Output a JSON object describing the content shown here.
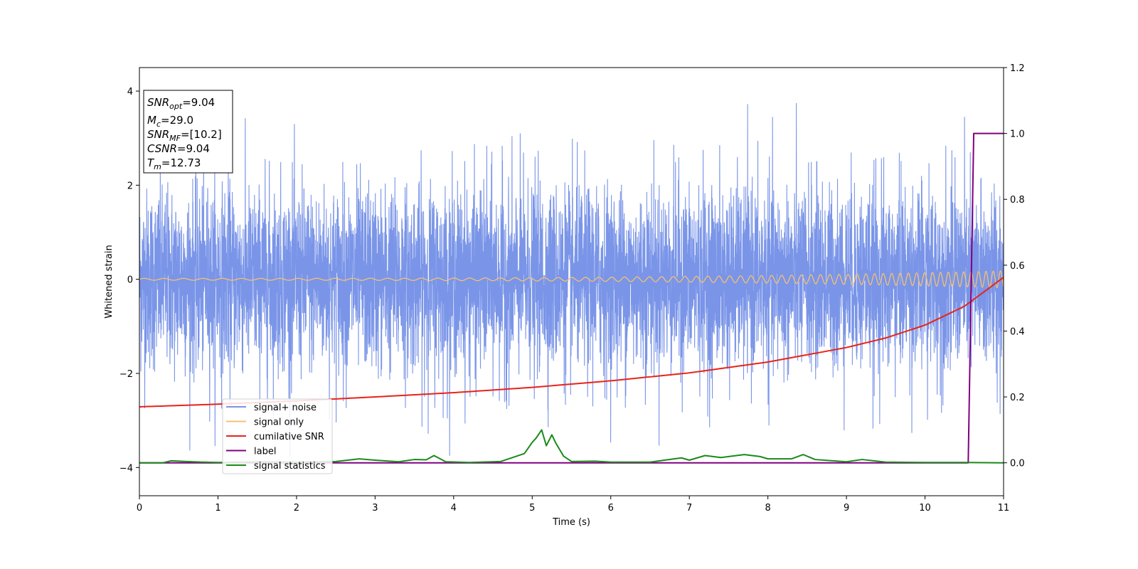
{
  "chart_data": {
    "type": "line",
    "xlabel": "Time (s)",
    "ylabel": "Whitened strain",
    "xlim": [
      0,
      11
    ],
    "ylim": [
      -4.6,
      4.5
    ],
    "y2lim": [
      -0.1,
      1.2
    ],
    "xticks": [
      "0",
      "1",
      "2",
      "3",
      "4",
      "5",
      "6",
      "7",
      "8",
      "9",
      "10",
      "11"
    ],
    "yticks": [
      "4",
      "2",
      "0",
      "−2",
      "−4"
    ],
    "y2ticks": [
      "1.2",
      "1.0",
      "0.8",
      "0.6",
      "0.4",
      "0.2",
      "0.0"
    ],
    "grid": false,
    "legend_position": "lower-left",
    "annotation": {
      "snr_opt": {
        "base": "SNR",
        "sub": "opt",
        "value": "=9.04"
      },
      "mc": {
        "base": "M",
        "sub": "c",
        "value": "=29.0"
      },
      "snr_mf": {
        "base": "SNR",
        "sub": "MF",
        "value": "=[10.2]"
      },
      "csnr": {
        "base": "CSNR",
        "value": "=9.04"
      },
      "tm": {
        "base": "T",
        "sub": "m",
        "value": "=12.73"
      }
    },
    "series": [
      {
        "name": "signal+ noise",
        "axis": "left",
        "color": "#7a95e8",
        "description_kind": "whitened noise, approx. standard deviation 1, peaks up to about 4.05 and down to about -3.75"
      },
      {
        "name": "signal only",
        "axis": "left",
        "color": "#f5c070",
        "kind": "chirp",
        "amplitude_start": 0.02,
        "amplitude_end": 0.18,
        "frequency_start_hz": 4,
        "frequency_end_hz": 11
      },
      {
        "name": "cumilative SNR",
        "axis": "right",
        "color": "#e8231a",
        "x": [
          0,
          1,
          2,
          3,
          4,
          5,
          6,
          7,
          8,
          9,
          9.5,
          10,
          10.5,
          11
        ],
        "y": [
          0.17,
          0.178,
          0.188,
          0.2,
          0.213,
          0.229,
          0.249,
          0.273,
          0.306,
          0.35,
          0.379,
          0.418,
          0.475,
          0.563
        ]
      },
      {
        "name": "label",
        "axis": "right",
        "color": "#800080",
        "x": [
          0,
          10.55,
          10.62,
          11
        ],
        "y": [
          0,
          0,
          1,
          1
        ]
      },
      {
        "name": "signal statistics",
        "axis": "right",
        "color": "#1a8a1a",
        "x": [
          0,
          0.3,
          0.4,
          0.6,
          0.8,
          1.0,
          1.5,
          2.0,
          2.5,
          2.8,
          3.0,
          3.3,
          3.5,
          3.65,
          3.75,
          3.9,
          4.2,
          4.6,
          4.8,
          4.9,
          5.0,
          5.05,
          5.12,
          5.18,
          5.25,
          5.3,
          5.4,
          5.5,
          5.8,
          6.0,
          6.5,
          6.9,
          7.0,
          7.2,
          7.4,
          7.6,
          7.7,
          7.9,
          8.0,
          8.3,
          8.45,
          8.6,
          9.0,
          9.2,
          9.5,
          10.0,
          10.5,
          11.0
        ],
        "y": [
          0,
          0,
          0.006,
          0.004,
          0.002,
          0.001,
          0.003,
          0.002,
          0.004,
          0.012,
          0.008,
          0.003,
          0.01,
          0.009,
          0.022,
          0.003,
          0.001,
          0.004,
          0.02,
          0.028,
          0.062,
          0.075,
          0.1,
          0.052,
          0.085,
          0.06,
          0.02,
          0.004,
          0.005,
          0.002,
          0.002,
          0.015,
          0.008,
          0.022,
          0.016,
          0.022,
          0.025,
          0.019,
          0.012,
          0.012,
          0.025,
          0.01,
          0.003,
          0.01,
          0.002,
          0.001,
          0.001,
          0.0
        ]
      }
    ]
  }
}
